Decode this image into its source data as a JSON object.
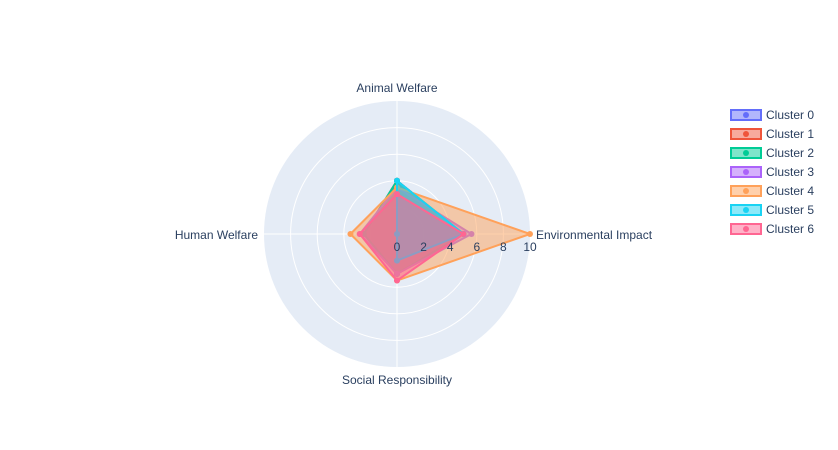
{
  "chart_data": {
    "type": "radar",
    "axes": [
      "Animal Welfare",
      "Environmental Impact",
      "Social Responsibility",
      "Human Welfare"
    ],
    "radial_range": [
      0,
      10
    ],
    "radial_ticks": [
      "0",
      "2",
      "4",
      "6",
      "8",
      "10"
    ],
    "legend_position": "top-right",
    "series": [
      {
        "name": "Cluster 0",
        "color": "#636efa",
        "values": [
          4,
          5,
          3,
          2.5
        ]
      },
      {
        "name": "Cluster 1",
        "color": "#ef553b",
        "values": [
          4,
          5,
          3,
          2.5
        ]
      },
      {
        "name": "Cluster 2",
        "color": "#00cc96",
        "values": [
          4,
          5,
          3,
          2.5
        ]
      },
      {
        "name": "Cluster 3",
        "color": "#ab63fa",
        "values": [
          3.5,
          5.6,
          3,
          2.8
        ]
      },
      {
        "name": "Cluster 4",
        "color": "#ffa15a",
        "values": [
          3.5,
          10,
          3.5,
          3.5
        ]
      },
      {
        "name": "Cluster 5",
        "color": "#19d3f3",
        "values": [
          4,
          5,
          2,
          0
        ]
      },
      {
        "name": "Cluster 6",
        "color": "#ff6692",
        "values": [
          3,
          5,
          3.5,
          2.8
        ]
      }
    ]
  }
}
